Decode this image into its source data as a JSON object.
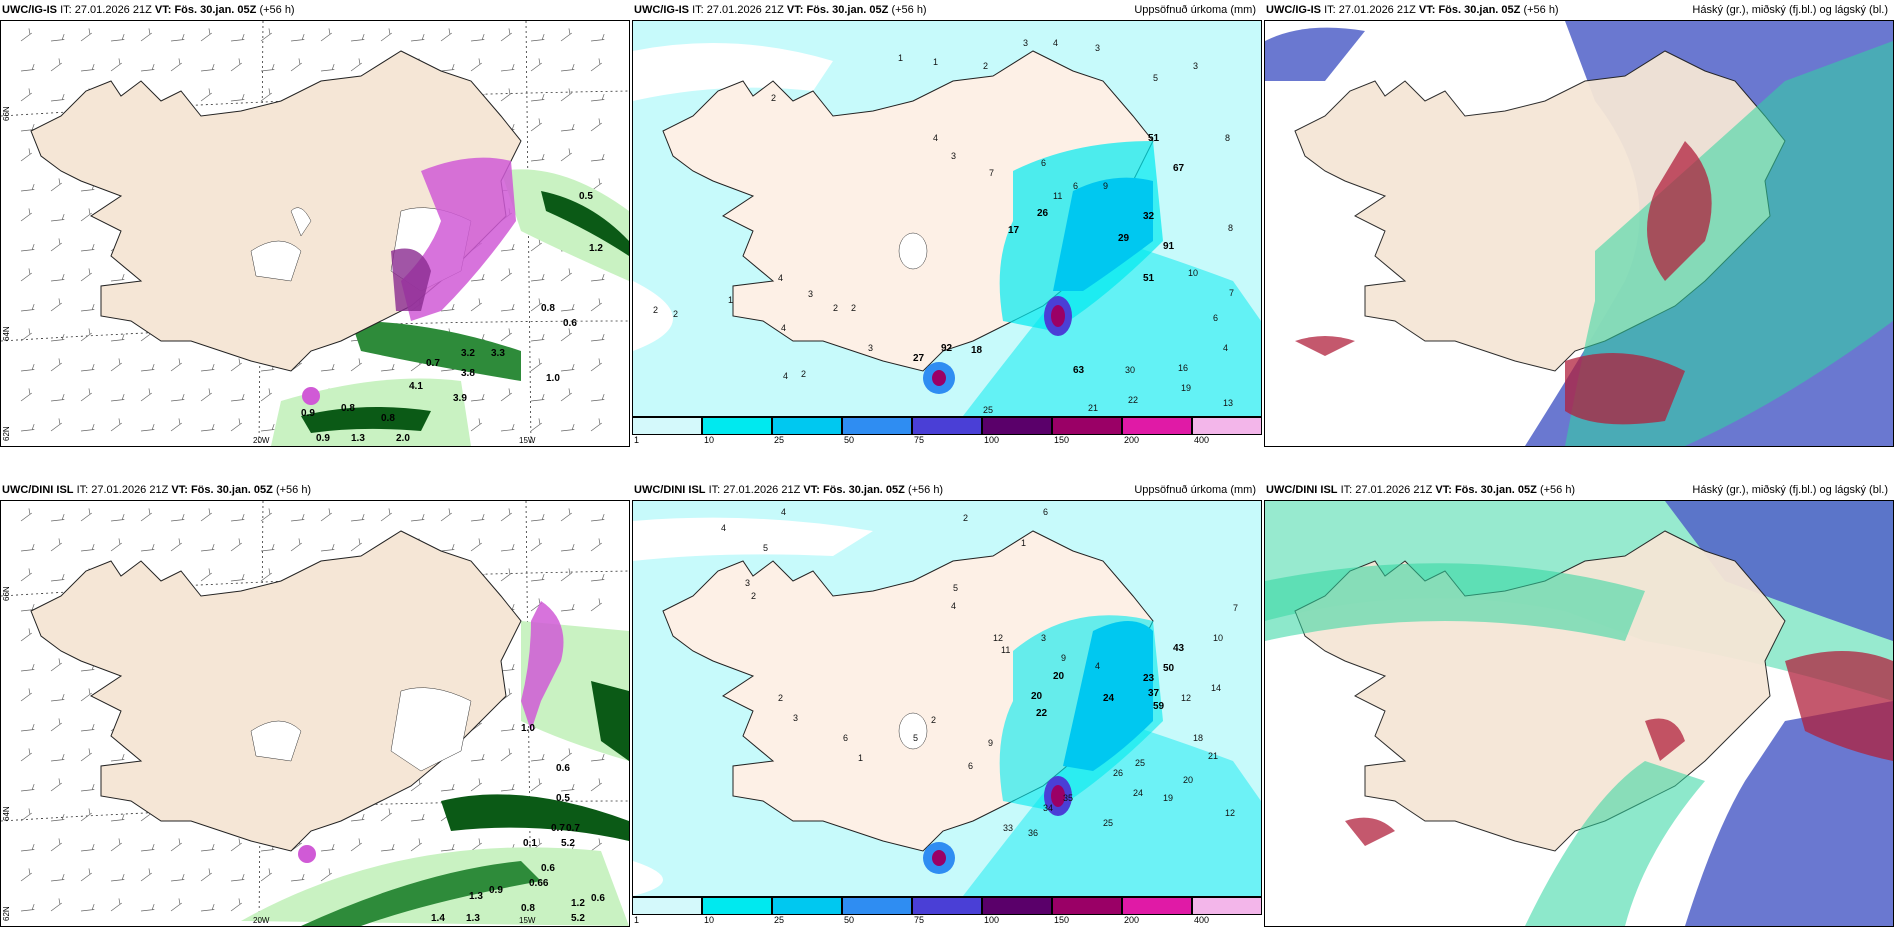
{
  "panels": [
    {
      "model": "UWC/IG-IS",
      "it_label": "IT:",
      "it": "27.01.2026 21Z",
      "vt_label": "VT:",
      "vt": "Fös. 30.jan. 05Z",
      "lead": "(+56 h)",
      "map_type": "snow-wind",
      "axis_labels": {
        "lat_66": "66N",
        "lat_64": "64N",
        "lat_62": "62N",
        "lon_20w": "20W",
        "lon_15w": "15W"
      },
      "values": [
        "0.5",
        "1.2",
        "0.8",
        "0.6",
        "1.0",
        "0.7",
        "0.8",
        "0.9",
        "1.3",
        "2.0",
        "3.8",
        "4.1",
        "3.9",
        "0.9",
        "0.8",
        "3.3",
        "3.2"
      ]
    },
    {
      "model": "UWC/IG-IS",
      "it_label": "IT:",
      "it": "27.01.2026 21Z",
      "vt_label": "VT:",
      "vt": "Fös. 30.jan. 05Z",
      "lead": "(+56 h)",
      "title_right": "Uppsöfnuð úrkoma (mm)",
      "map_type": "precip",
      "values": [
        "1",
        "1",
        "2",
        "2",
        "3",
        "4",
        "3",
        "5",
        "3",
        "4",
        "3",
        "6",
        "7",
        "6",
        "11",
        "26",
        "17",
        "9",
        "29",
        "32",
        "67",
        "91",
        "51",
        "51",
        "10",
        "8",
        "8",
        "7",
        "6",
        "4",
        "2",
        "2",
        "1",
        "4",
        "4",
        "2",
        "3",
        "2",
        "3",
        "4",
        "2",
        "27",
        "92",
        "18",
        "63",
        "30",
        "16",
        "19",
        "13",
        "21",
        "22",
        "25"
      ]
    },
    {
      "model": "UWC/IG-IS",
      "it_label": "IT:",
      "it": "27.01.2026 21Z",
      "vt_label": "VT:",
      "vt": "Fös. 30.jan. 05Z",
      "lead": "(+56 h)",
      "title_right": "Háský (gr.), miðský (fj.bl.) og lágský (bl.)",
      "map_type": "cloud"
    },
    {
      "model": "UWC/DINI ISL",
      "it_label": "IT:",
      "it": "27.01.2026 21Z",
      "vt_label": "VT:",
      "vt": "Fös. 30.jan. 05Z",
      "lead": "(+56 h)",
      "map_type": "snow-wind",
      "axis_labels": {
        "lat_66": "66N",
        "lat_64": "64N",
        "lat_62": "62N",
        "lon_20w": "20W",
        "lon_15w": "15W"
      },
      "values": [
        "0.5",
        "0.7",
        "0.7",
        "5.2",
        "0.1",
        "0.6",
        "0.66",
        "1.3",
        "1.2",
        "0.6",
        "5.2",
        "0.9",
        "1.4",
        "1.3",
        "0.8",
        "1.0",
        "0.6"
      ]
    },
    {
      "model": "UWC/DINI ISL",
      "it_label": "IT:",
      "it": "27.01.2026 21Z",
      "vt_label": "VT:",
      "vt": "Fös. 30.jan. 05Z",
      "lead": "(+56 h)",
      "title_right": "Uppsöfnuð úrkoma (mm)",
      "map_type": "precip",
      "values": [
        "4",
        "4",
        "2",
        "6",
        "5",
        "3",
        "2",
        "1",
        "5",
        "4",
        "12",
        "11",
        "3",
        "9",
        "20",
        "4",
        "20",
        "22",
        "24",
        "23",
        "50",
        "37",
        "59",
        "43",
        "10",
        "7",
        "12",
        "14",
        "18",
        "21",
        "20",
        "19",
        "25",
        "26",
        "24",
        "35",
        "34",
        "33",
        "36",
        "25",
        "12",
        "2",
        "3",
        "6",
        "1",
        "9",
        "6",
        "5",
        "2"
      ]
    },
    {
      "model": "UWC/DINI ISL",
      "it_label": "IT:",
      "it": "27.01.2026 21Z",
      "vt_label": "VT:",
      "vt": "Fös. 30.jan. 05Z",
      "lead": "(+56 h)",
      "title_right": "Háský (gr.), miðský (fj.bl.) og lágský (bl.)",
      "map_type": "cloud"
    }
  ],
  "colorbar": {
    "labels": [
      "1",
      "10",
      "25",
      "50",
      "75",
      "100",
      "150",
      "200",
      "400"
    ],
    "colors": [
      "#d4f9fb",
      "#00e9ef",
      "#00c8f0",
      "#2f8df2",
      "#4a3fd6",
      "#5a006a",
      "#9a0066",
      "#e01aa6",
      "#f3b6ea"
    ]
  },
  "colors": {
    "land": "#f5e6d6",
    "land_precip": "#fdf0e6",
    "sea_precip": "#c7fafb",
    "snow_green_light": "#c9f2c2",
    "snow_green_dark": "#0b5a16",
    "snow_magenta": "#d05ad6",
    "cloud_high": "#2fd6a0",
    "cloud_mid": "#5060c8",
    "cloud_low": "#b0203c"
  }
}
